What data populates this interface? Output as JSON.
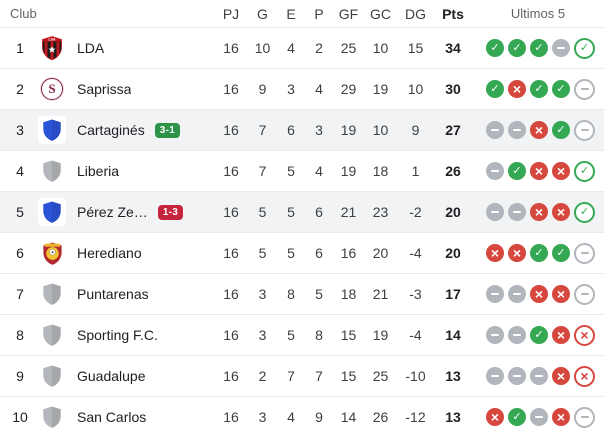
{
  "table": {
    "columns": {
      "club": "Club",
      "pj": "PJ",
      "g": "G",
      "e": "E",
      "p": "P",
      "gf": "GF",
      "gc": "GC",
      "dg": "DG",
      "pts": "Pts",
      "last5": "Ultimos 5"
    },
    "rows": [
      {
        "pos": "1",
        "club": "LDA",
        "crest": "lda",
        "highlighted": false,
        "pj": "16",
        "g": "10",
        "e": "4",
        "p": "2",
        "gf": "25",
        "gc": "10",
        "dg": "15",
        "pts": "34",
        "form": [
          "W",
          "W",
          "W",
          "D",
          "W"
        ]
      },
      {
        "pos": "2",
        "club": "Saprissa",
        "crest": "saprissa",
        "highlighted": false,
        "pj": "16",
        "g": "9",
        "e": "3",
        "p": "4",
        "gf": "29",
        "gc": "19",
        "dg": "10",
        "pts": "30",
        "form": [
          "W",
          "L",
          "W",
          "W",
          "D"
        ]
      },
      {
        "pos": "3",
        "club": "Cartaginés",
        "crest": "blue",
        "highlighted": true,
        "badge": {
          "text": "3-1",
          "type": "win"
        },
        "pj": "16",
        "g": "7",
        "e": "6",
        "p": "3",
        "gf": "19",
        "gc": "10",
        "dg": "9",
        "pts": "27",
        "form": [
          "D",
          "D",
          "L",
          "W",
          "D"
        ]
      },
      {
        "pos": "4",
        "club": "Liberia",
        "crest": "gray",
        "highlighted": false,
        "pj": "16",
        "g": "7",
        "e": "5",
        "p": "4",
        "gf": "19",
        "gc": "18",
        "dg": "1",
        "pts": "26",
        "form": [
          "D",
          "W",
          "L",
          "L",
          "W"
        ]
      },
      {
        "pos": "5",
        "club": "Pérez Ze…",
        "crest": "blue",
        "highlighted": true,
        "badge": {
          "text": "1-3",
          "type": "loss"
        },
        "pj": "16",
        "g": "5",
        "e": "5",
        "p": "6",
        "gf": "21",
        "gc": "23",
        "dg": "-2",
        "pts": "20",
        "form": [
          "D",
          "D",
          "L",
          "L",
          "W"
        ]
      },
      {
        "pos": "6",
        "club": "Herediano",
        "crest": "herediano",
        "highlighted": false,
        "pj": "16",
        "g": "5",
        "e": "5",
        "p": "6",
        "gf": "16",
        "gc": "20",
        "dg": "-4",
        "pts": "20",
        "form": [
          "L",
          "L",
          "W",
          "W",
          "D"
        ]
      },
      {
        "pos": "7",
        "club": "Puntarenas",
        "crest": "gray",
        "highlighted": false,
        "pj": "16",
        "g": "3",
        "e": "8",
        "p": "5",
        "gf": "18",
        "gc": "21",
        "dg": "-3",
        "pts": "17",
        "form": [
          "D",
          "D",
          "L",
          "L",
          "D"
        ]
      },
      {
        "pos": "8",
        "club": "Sporting F.C.",
        "crest": "gray",
        "highlighted": false,
        "pj": "16",
        "g": "3",
        "e": "5",
        "p": "8",
        "gf": "15",
        "gc": "19",
        "dg": "-4",
        "pts": "14",
        "form": [
          "D",
          "D",
          "W",
          "L",
          "L"
        ]
      },
      {
        "pos": "9",
        "club": "Guadalupe",
        "crest": "gray",
        "highlighted": false,
        "pj": "16",
        "g": "2",
        "e": "7",
        "p": "7",
        "gf": "15",
        "gc": "25",
        "dg": "-10",
        "pts": "13",
        "form": [
          "D",
          "D",
          "D",
          "L",
          "L"
        ]
      },
      {
        "pos": "10",
        "club": "San Carlos",
        "crest": "gray",
        "highlighted": false,
        "pj": "16",
        "g": "3",
        "e": "4",
        "p": "9",
        "gf": "14",
        "gc": "26",
        "dg": "-12",
        "pts": "13",
        "form": [
          "L",
          "W",
          "D",
          "L",
          "D"
        ]
      }
    ]
  },
  "colors": {
    "win": "#34A853",
    "loss": "#D6473E",
    "draw": "#B0B6BC",
    "badge_win": "#2D9348",
    "badge_loss": "#C5243B",
    "row_highlight": "#F1F3F4",
    "blue_shield": "#2B53D7",
    "gray_shield": "#B3B6BA"
  }
}
